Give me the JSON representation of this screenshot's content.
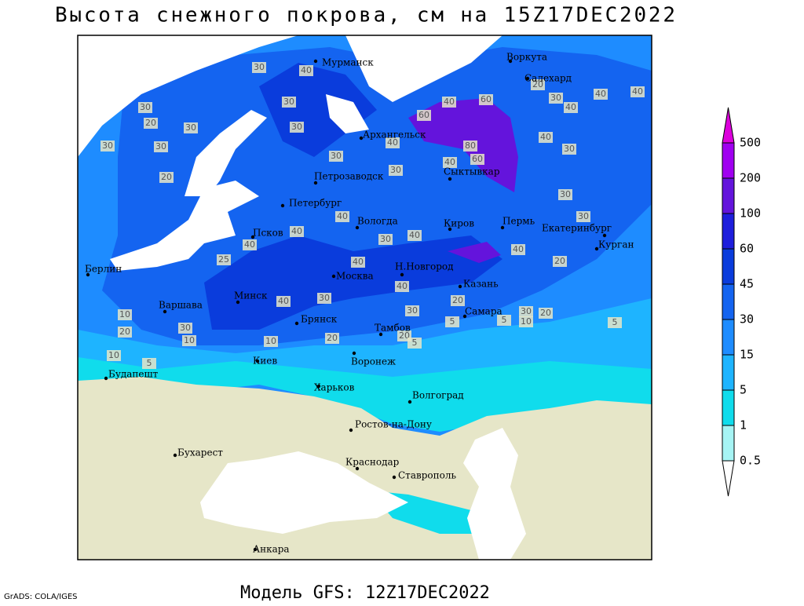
{
  "title": "Высота снежного покрова, см на 15Z17DEC2022",
  "footer": {
    "software": "GrADS: COLA/IGES",
    "model": "Модель GFS: 12Z17DEC2022"
  },
  "cities": [
    "Мурманск",
    "Воркута",
    "Салехард",
    "Архангельск",
    "Сыктывкар",
    "Петрозаводск",
    "Петербург",
    "Вологда",
    "Киров",
    "Пермь",
    "Екатеринбург",
    "Курган",
    "Псков",
    "Москва",
    "Н.Новгород",
    "Казань",
    "Берлин",
    "Минск",
    "Варшава",
    "Брянск",
    "Самара",
    "Тамбов",
    "Киев",
    "Воронеж",
    "Будапешт",
    "Харьков",
    "Волгоград",
    "Ростов-на-Дону",
    "Бухарест",
    "Краснодар",
    "Ставрополь",
    "Анкара"
  ],
  "contour_labels": [
    30,
    40,
    30,
    30,
    20,
    30,
    30,
    20,
    30,
    30,
    30,
    40,
    60,
    40,
    60,
    80,
    40,
    60,
    30,
    40,
    30,
    40,
    40,
    40,
    25,
    40,
    30,
    40,
    40,
    30,
    20,
    20,
    10,
    10,
    30,
    10,
    20,
    10,
    5,
    20,
    5,
    30,
    10,
    20,
    40,
    20,
    30,
    30,
    30,
    40,
    40,
    30,
    40,
    40,
    20,
    5,
    5,
    5
  ],
  "colorbar": {
    "levels": [
      0.5,
      1,
      5,
      15,
      30,
      45,
      60,
      100,
      200,
      500
    ],
    "colors": [
      "#ffffff",
      "#a6f4f4",
      "#10dcec",
      "#1eb4ff",
      "#1e8cff",
      "#1464f0",
      "#0a3cdc",
      "#1e1edc",
      "#6414dc",
      "#a000f0",
      "#dc00dc"
    ]
  }
}
